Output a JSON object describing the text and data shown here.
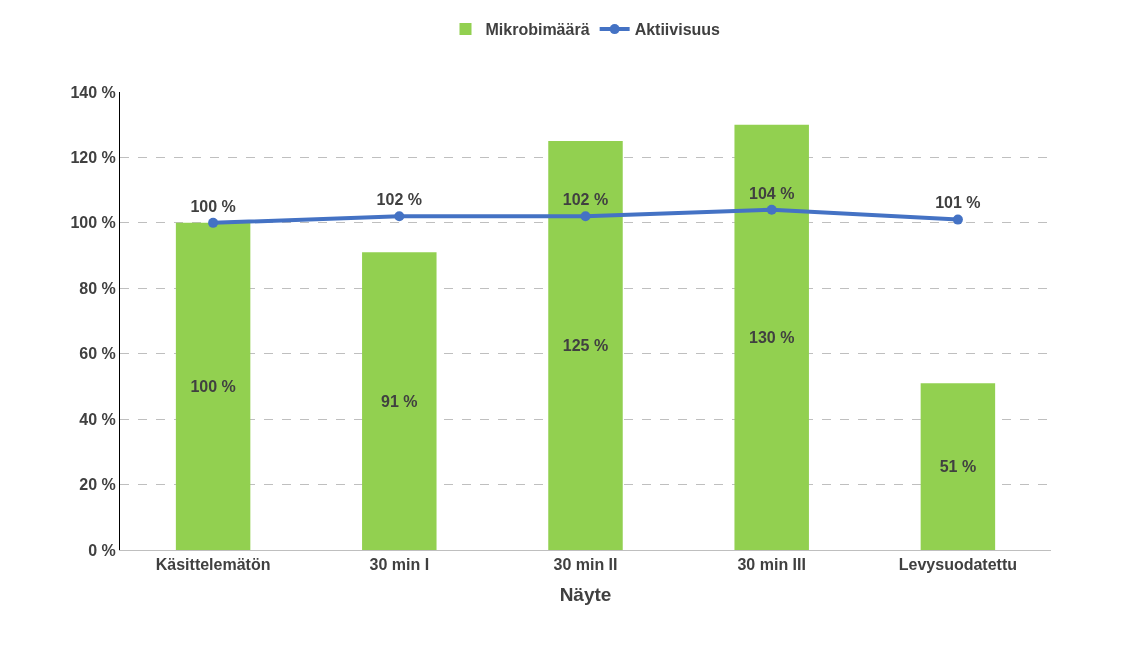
{
  "chart_data": {
    "type": "bar",
    "xlabel": "Näyte",
    "categories": [
      "Käsittelemätön",
      "30 min I",
      "30 min II",
      "30 min III",
      "Levysuodatettu"
    ],
    "series": [
      {
        "name": "Mikrobimäärä",
        "color": "#92d050",
        "values": [
          100,
          91,
          125,
          130,
          51
        ],
        "value_labels": [
          "100 %",
          "91 %",
          "125 %",
          "130 %",
          "51 %"
        ]
      },
      {
        "name": "Aktiivisuus",
        "type": "line",
        "color": "#4472c4",
        "values": [
          100,
          102,
          102,
          104,
          101
        ],
        "value_labels": [
          "100 %",
          "102 %",
          "102 %",
          "104 %",
          "101 %"
        ]
      }
    ],
    "ylim": [
      0,
      140
    ],
    "yticks": [
      {
        "value": 0,
        "label": "0 %"
      },
      {
        "value": 20,
        "label": "20 %"
      },
      {
        "value": 40,
        "label": "40 %"
      },
      {
        "value": 60,
        "label": "60 %"
      },
      {
        "value": 80,
        "label": "80 %"
      },
      {
        "value": 100,
        "label": "100 %"
      },
      {
        "value": 120,
        "label": "120 %"
      },
      {
        "value": 140,
        "label": "140 %"
      }
    ],
    "grid": "y",
    "legend": "top",
    "marker": "circle",
    "line_style": "solid"
  }
}
